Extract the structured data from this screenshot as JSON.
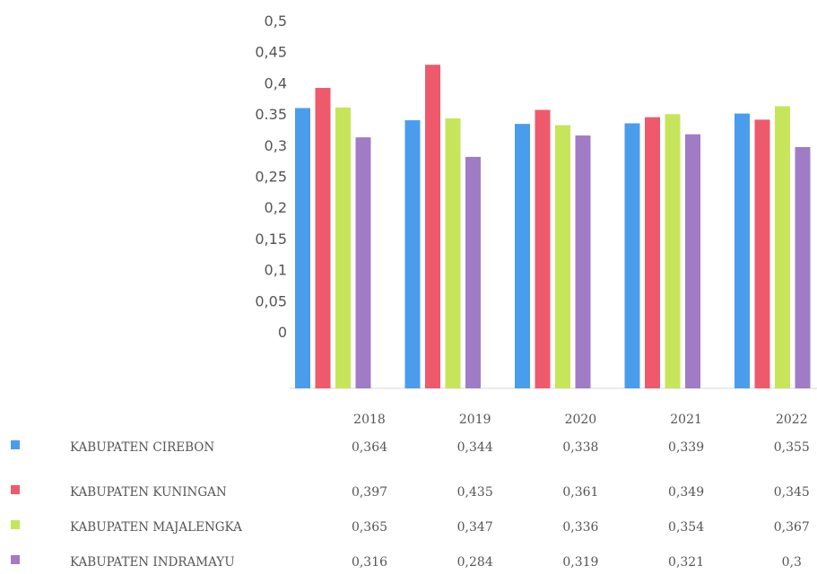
{
  "chart_data": {
    "type": "bar",
    "categories": [
      "2018",
      "2019",
      "2020",
      "2021",
      "2022"
    ],
    "y_tick_labels": [
      "0,5",
      "0,45",
      "0,4",
      "0.35",
      "0,3",
      "0,25",
      "0,2",
      "0,15",
      "0,1",
      "0,05",
      "0"
    ],
    "ylim": [
      0,
      0.5
    ],
    "grid": false,
    "legend": "data-table-below",
    "series": [
      {
        "name": "KABUPATEN CIREBON",
        "color": "#4a9ded",
        "values": [
          0.364,
          0.344,
          0.338,
          0.339,
          0.355
        ],
        "value_labels": [
          "0,364",
          "0,344",
          "0,338",
          "0,339",
          "0,355"
        ]
      },
      {
        "name": "KABUPATEN KUNINGAN",
        "color": "#ee5a6b",
        "values": [
          0.397,
          0.435,
          0.361,
          0.349,
          0.345
        ],
        "value_labels": [
          "0,397",
          "0,435",
          "0,361",
          "0,349",
          "0,345"
        ]
      },
      {
        "name": "KABUPATEN MAJALENGKA",
        "color": "#c6e55a",
        "values": [
          0.365,
          0.347,
          0.336,
          0.354,
          0.367
        ],
        "value_labels": [
          "0,365",
          "0,347",
          "0,336",
          "0,354",
          "0,367"
        ]
      },
      {
        "name": "KABUPATEN INDRAMAYU",
        "color": "#a07cc6",
        "values": [
          0.316,
          0.284,
          0.319,
          0.321,
          0.3
        ],
        "value_labels": [
          "0,316",
          "0,284",
          "0,319",
          "0,321",
          "0,3"
        ]
      }
    ]
  }
}
